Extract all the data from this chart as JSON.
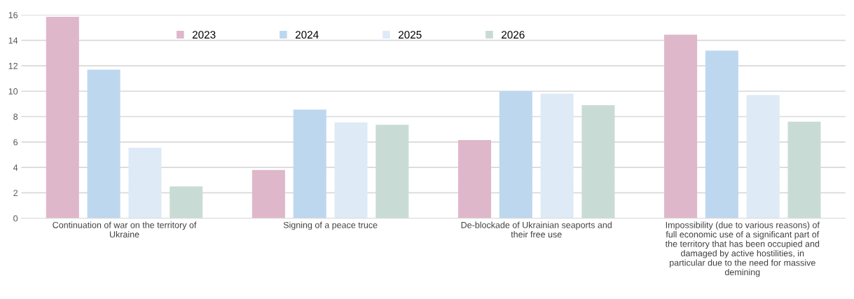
{
  "chart_data": {
    "type": "bar",
    "categories": [
      "Continuation of war on the territory of Ukraine",
      "Signing of a peace truce",
      "De-blockade of Ukrainian seaports and their free use",
      "Impossibility (due to various reasons) of full economic use of a significant part of the territory that has been occupied and damaged by active hostilities, in particular due to the need for massive demining"
    ],
    "series": [
      {
        "name": "2023",
        "color": "#dfb7ca",
        "values": [
          15.85,
          3.8,
          6.15,
          14.45
        ]
      },
      {
        "name": "2024",
        "color": "#bdd7ee",
        "values": [
          11.7,
          8.55,
          10.0,
          13.2
        ]
      },
      {
        "name": "2025",
        "color": "#deeaf6",
        "values": [
          5.55,
          7.55,
          9.8,
          9.7
        ]
      },
      {
        "name": "2026",
        "color": "#c9dbd5",
        "values": [
          2.5,
          7.35,
          8.9,
          7.6
        ]
      }
    ],
    "ylim": [
      0,
      16
    ],
    "yticks": [
      0,
      2,
      4,
      6,
      8,
      10,
      12,
      14,
      16
    ],
    "grid": "y",
    "legend": "top"
  }
}
